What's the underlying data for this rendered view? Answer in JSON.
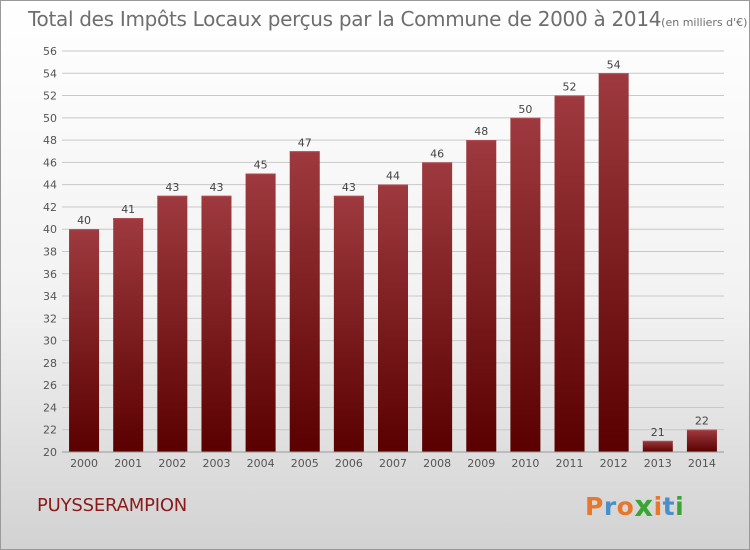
{
  "title": "Total des Impôts Locaux perçus par la Commune de 2000 à 2014",
  "unit_note": "(en milliers d'€)",
  "commune": "PUYSSERAMPION",
  "logo": {
    "letters": [
      "P",
      "r",
      "o",
      "x",
      "i",
      "t",
      "i"
    ],
    "colors": [
      "#e8772e",
      "#4a90c8",
      "#e8772e",
      "#3aa535",
      "#e8772e",
      "#4a90c8",
      "#3aa535"
    ]
  },
  "colors": {
    "bar_top": "#9e3a3f",
    "bar_bottom": "#5a0000",
    "grid": "#c8c8c8"
  },
  "chart_data": {
    "type": "bar",
    "title": "Total des Impôts Locaux perçus par la Commune de 2000 à 2014",
    "xlabel": "",
    "ylabel": "en milliers d'€",
    "categories": [
      "2000",
      "2001",
      "2002",
      "2003",
      "2004",
      "2005",
      "2006",
      "2007",
      "2008",
      "2009",
      "2010",
      "2011",
      "2012",
      "2013",
      "2014"
    ],
    "values": [
      40,
      41,
      43,
      43,
      45,
      47,
      43,
      44,
      46,
      48,
      50,
      52,
      54,
      21,
      22
    ],
    "ylim": [
      20,
      56
    ],
    "ytick_step": 2,
    "grid": true
  }
}
